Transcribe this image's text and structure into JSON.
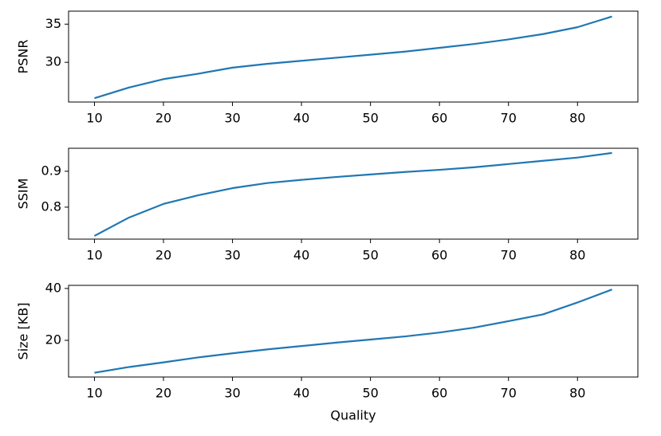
{
  "chart_data": [
    {
      "type": "line",
      "ylabel": "PSNR",
      "x": [
        10,
        15,
        20,
        25,
        30,
        35,
        40,
        45,
        50,
        55,
        60,
        65,
        70,
        75,
        80,
        85
      ],
      "series": [
        {
          "color": "#1f77b4",
          "values": [
            25.3,
            26.7,
            27.8,
            28.5,
            29.3,
            29.8,
            30.2,
            30.6,
            31.0,
            31.4,
            31.9,
            32.4,
            33.0,
            33.7,
            34.6,
            36.0
          ]
        }
      ],
      "xlim": [
        6.25,
        88.75
      ],
      "xticks": [
        10,
        20,
        30,
        40,
        50,
        60,
        70,
        80
      ],
      "ylim": [
        24.8,
        36.7
      ],
      "yticks": [
        30,
        35
      ]
    },
    {
      "type": "line",
      "ylabel": "SSIM",
      "x": [
        10,
        15,
        20,
        25,
        30,
        35,
        40,
        45,
        50,
        55,
        60,
        65,
        70,
        75,
        80,
        85
      ],
      "series": [
        {
          "color": "#1f77b4",
          "values": [
            0.72,
            0.771,
            0.809,
            0.833,
            0.853,
            0.867,
            0.876,
            0.884,
            0.891,
            0.898,
            0.904,
            0.911,
            0.92,
            0.929,
            0.938,
            0.951
          ]
        }
      ],
      "xlim": [
        6.25,
        88.75
      ],
      "xticks": [
        10,
        20,
        30,
        40,
        50,
        60,
        70,
        80
      ],
      "ylim": [
        0.711,
        0.964
      ],
      "yticks": [
        0.8,
        0.9
      ]
    },
    {
      "type": "line",
      "ylabel": "Size [KB]",
      "xlabel": "Quality",
      "x": [
        10,
        15,
        20,
        25,
        30,
        35,
        40,
        45,
        50,
        55,
        60,
        65,
        70,
        75,
        80,
        85
      ],
      "series": [
        {
          "color": "#1f77b4",
          "values": [
            7.5,
            9.7,
            11.5,
            13.4,
            15.0,
            16.5,
            17.8,
            19.1,
            20.3,
            21.5,
            23.0,
            24.9,
            27.4,
            30.0,
            34.6,
            39.6
          ]
        }
      ],
      "xlim": [
        6.25,
        88.75
      ],
      "xticks": [
        10,
        20,
        30,
        40,
        50,
        60,
        70,
        80
      ],
      "ylim": [
        5.85,
        41.2
      ],
      "yticks": [
        20,
        40
      ]
    }
  ]
}
